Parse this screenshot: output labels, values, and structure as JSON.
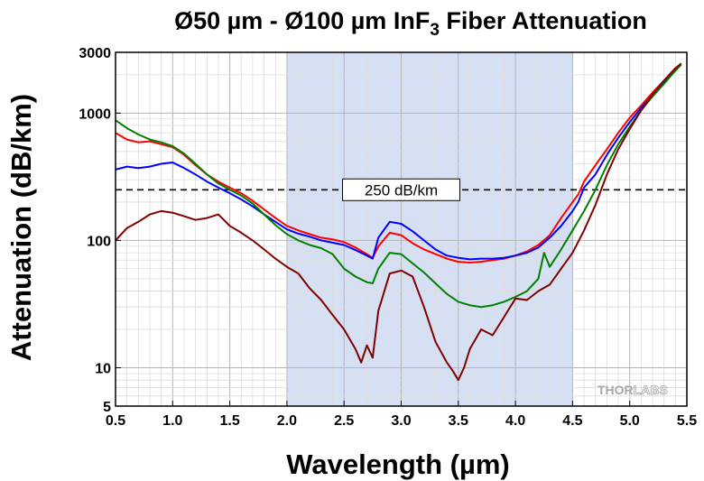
{
  "chart_data": {
    "type": "line",
    "title": "Ø50 µm - Ø100 µm InF",
    "title_sub": "3",
    "title_rest": " Fiber Attenuation",
    "xlabel": "Wavelength (µm)",
    "ylabel": "Attenuation (dB/km)",
    "xlim": [
      0.5,
      5.5
    ],
    "ylim": [
      5,
      3000
    ],
    "yscale": "log",
    "grid": true,
    "x_ticks": [
      "0.5",
      "1.0",
      "1.5",
      "2.0",
      "2.5",
      "3.0",
      "3.5",
      "4.0",
      "4.5",
      "5.0",
      "5.5"
    ],
    "y_ticks": [
      {
        "value": 5,
        "label": "5"
      },
      {
        "value": 10,
        "label": "10"
      },
      {
        "value": 100,
        "label": "100"
      },
      {
        "value": 1000,
        "label": "1000"
      },
      {
        "value": 3000,
        "label": "3000"
      }
    ],
    "shaded_region": {
      "x_start": 2.0,
      "x_end": 4.5,
      "color": "#d6e0f4"
    },
    "reference_line": {
      "y": 250,
      "label": "250 dB/km",
      "label_x": 3.0
    },
    "series": [
      {
        "color": "#ff0000",
        "points": [
          [
            0.5,
            700
          ],
          [
            0.6,
            620
          ],
          [
            0.7,
            590
          ],
          [
            0.8,
            600
          ],
          [
            0.9,
            570
          ],
          [
            1.0,
            540
          ],
          [
            1.1,
            470
          ],
          [
            1.2,
            390
          ],
          [
            1.3,
            330
          ],
          [
            1.4,
            290
          ],
          [
            1.5,
            260
          ],
          [
            1.6,
            235
          ],
          [
            1.7,
            205
          ],
          [
            1.8,
            175
          ],
          [
            1.9,
            150
          ],
          [
            2.0,
            130
          ],
          [
            2.1,
            120
          ],
          [
            2.2,
            112
          ],
          [
            2.3,
            105
          ],
          [
            2.4,
            102
          ],
          [
            2.5,
            97
          ],
          [
            2.6,
            88
          ],
          [
            2.7,
            78
          ],
          [
            2.75,
            73
          ],
          [
            2.8,
            90
          ],
          [
            2.9,
            115
          ],
          [
            3.0,
            110
          ],
          [
            3.1,
            95
          ],
          [
            3.2,
            85
          ],
          [
            3.3,
            78
          ],
          [
            3.4,
            72
          ],
          [
            3.5,
            68
          ],
          [
            3.6,
            67
          ],
          [
            3.7,
            68
          ],
          [
            3.8,
            70
          ],
          [
            3.9,
            72
          ],
          [
            4.0,
            76
          ],
          [
            4.1,
            82
          ],
          [
            4.2,
            92
          ],
          [
            4.3,
            110
          ],
          [
            4.4,
            150
          ],
          [
            4.5,
            200
          ],
          [
            4.55,
            230
          ],
          [
            4.6,
            290
          ],
          [
            4.7,
            390
          ],
          [
            4.8,
            520
          ],
          [
            4.9,
            700
          ],
          [
            5.0,
            920
          ],
          [
            5.1,
            1150
          ],
          [
            5.2,
            1450
          ],
          [
            5.3,
            1800
          ],
          [
            5.4,
            2250
          ],
          [
            5.45,
            2400
          ]
        ]
      },
      {
        "color": "#0000ff",
        "points": [
          [
            0.5,
            360
          ],
          [
            0.6,
            380
          ],
          [
            0.7,
            370
          ],
          [
            0.8,
            380
          ],
          [
            0.9,
            400
          ],
          [
            1.0,
            410
          ],
          [
            1.1,
            370
          ],
          [
            1.2,
            330
          ],
          [
            1.3,
            290
          ],
          [
            1.4,
            260
          ],
          [
            1.5,
            235
          ],
          [
            1.6,
            210
          ],
          [
            1.7,
            185
          ],
          [
            1.8,
            160
          ],
          [
            1.9,
            140
          ],
          [
            2.0,
            122
          ],
          [
            2.1,
            113
          ],
          [
            2.2,
            107
          ],
          [
            2.3,
            100
          ],
          [
            2.4,
            96
          ],
          [
            2.5,
            92
          ],
          [
            2.6,
            84
          ],
          [
            2.7,
            76
          ],
          [
            2.75,
            72
          ],
          [
            2.8,
            105
          ],
          [
            2.9,
            140
          ],
          [
            3.0,
            135
          ],
          [
            3.1,
            118
          ],
          [
            3.2,
            100
          ],
          [
            3.3,
            85
          ],
          [
            3.4,
            76
          ],
          [
            3.5,
            73
          ],
          [
            3.6,
            71
          ],
          [
            3.7,
            72
          ],
          [
            3.8,
            72
          ],
          [
            3.9,
            73
          ],
          [
            4.0,
            76
          ],
          [
            4.1,
            80
          ],
          [
            4.2,
            88
          ],
          [
            4.3,
            105
          ],
          [
            4.4,
            130
          ],
          [
            4.5,
            170
          ],
          [
            4.55,
            200
          ],
          [
            4.6,
            260
          ],
          [
            4.7,
            330
          ],
          [
            4.8,
            470
          ],
          [
            4.9,
            640
          ],
          [
            5.0,
            850
          ],
          [
            5.1,
            1100
          ],
          [
            5.2,
            1380
          ],
          [
            5.3,
            1750
          ],
          [
            5.4,
            2200
          ],
          [
            5.45,
            2450
          ]
        ]
      },
      {
        "color": "#008000",
        "points": [
          [
            0.5,
            880
          ],
          [
            0.6,
            760
          ],
          [
            0.7,
            680
          ],
          [
            0.8,
            620
          ],
          [
            0.9,
            590
          ],
          [
            1.0,
            550
          ],
          [
            1.1,
            480
          ],
          [
            1.2,
            400
          ],
          [
            1.3,
            330
          ],
          [
            1.4,
            280
          ],
          [
            1.5,
            250
          ],
          [
            1.6,
            225
          ],
          [
            1.7,
            195
          ],
          [
            1.8,
            160
          ],
          [
            1.9,
            132
          ],
          [
            2.0,
            112
          ],
          [
            2.1,
            100
          ],
          [
            2.2,
            92
          ],
          [
            2.3,
            87
          ],
          [
            2.4,
            78
          ],
          [
            2.5,
            60
          ],
          [
            2.6,
            52
          ],
          [
            2.7,
            47
          ],
          [
            2.75,
            46
          ],
          [
            2.8,
            60
          ],
          [
            2.9,
            80
          ],
          [
            3.0,
            78
          ],
          [
            3.1,
            66
          ],
          [
            3.2,
            56
          ],
          [
            3.3,
            46
          ],
          [
            3.4,
            38
          ],
          [
            3.5,
            33
          ],
          [
            3.6,
            31
          ],
          [
            3.7,
            30
          ],
          [
            3.8,
            31
          ],
          [
            3.9,
            33
          ],
          [
            4.0,
            36
          ],
          [
            4.1,
            40
          ],
          [
            4.2,
            50
          ],
          [
            4.25,
            80
          ],
          [
            4.3,
            62
          ],
          [
            4.4,
            85
          ],
          [
            4.5,
            120
          ],
          [
            4.6,
            170
          ],
          [
            4.7,
            250
          ],
          [
            4.8,
            390
          ],
          [
            4.9,
            570
          ],
          [
            5.0,
            780
          ],
          [
            5.1,
            1050
          ],
          [
            5.2,
            1350
          ],
          [
            5.3,
            1700
          ],
          [
            5.4,
            2150
          ],
          [
            5.45,
            2400
          ]
        ]
      },
      {
        "color": "#800000",
        "points": [
          [
            0.5,
            100
          ],
          [
            0.6,
            125
          ],
          [
            0.7,
            140
          ],
          [
            0.8,
            160
          ],
          [
            0.9,
            170
          ],
          [
            1.0,
            165
          ],
          [
            1.1,
            155
          ],
          [
            1.2,
            145
          ],
          [
            1.3,
            150
          ],
          [
            1.4,
            160
          ],
          [
            1.5,
            130
          ],
          [
            1.6,
            115
          ],
          [
            1.7,
            100
          ],
          [
            1.8,
            85
          ],
          [
            1.9,
            72
          ],
          [
            2.0,
            62
          ],
          [
            2.1,
            55
          ],
          [
            2.2,
            42
          ],
          [
            2.3,
            34
          ],
          [
            2.4,
            26
          ],
          [
            2.5,
            20
          ],
          [
            2.6,
            14
          ],
          [
            2.65,
            11
          ],
          [
            2.7,
            15
          ],
          [
            2.75,
            12
          ],
          [
            2.8,
            28
          ],
          [
            2.9,
            55
          ],
          [
            3.0,
            58
          ],
          [
            3.1,
            52
          ],
          [
            3.2,
            30
          ],
          [
            3.3,
            16
          ],
          [
            3.4,
            11
          ],
          [
            3.45,
            9.5
          ],
          [
            3.5,
            8
          ],
          [
            3.55,
            10
          ],
          [
            3.6,
            14
          ],
          [
            3.7,
            20
          ],
          [
            3.8,
            18
          ],
          [
            3.9,
            25
          ],
          [
            4.0,
            35
          ],
          [
            4.1,
            34
          ],
          [
            4.2,
            40
          ],
          [
            4.3,
            45
          ],
          [
            4.4,
            60
          ],
          [
            4.5,
            80
          ],
          [
            4.6,
            120
          ],
          [
            4.7,
            190
          ],
          [
            4.8,
            330
          ],
          [
            4.9,
            520
          ],
          [
            5.0,
            750
          ],
          [
            5.1,
            1050
          ],
          [
            5.2,
            1400
          ],
          [
            5.3,
            1800
          ],
          [
            5.4,
            2250
          ],
          [
            5.45,
            2450
          ]
        ]
      }
    ]
  },
  "watermark": {
    "part1": "THOR",
    "part2": "LABS"
  }
}
